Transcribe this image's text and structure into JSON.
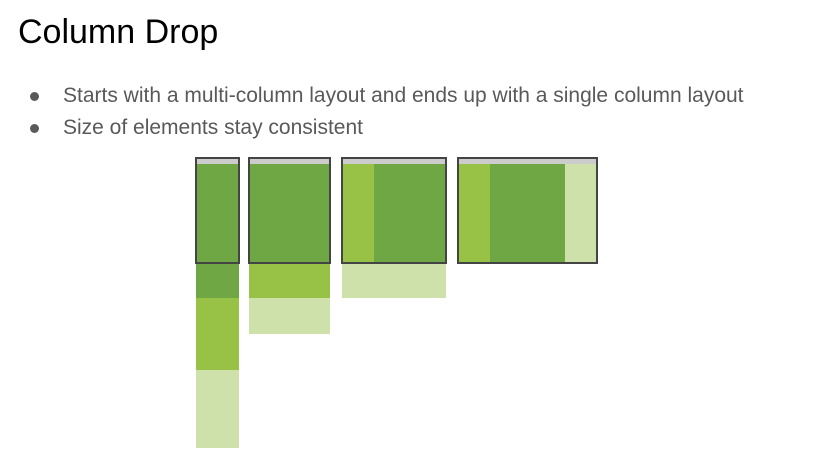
{
  "slide": {
    "title": "Column Drop",
    "bullets": [
      "Starts with a multi-column layout and ends up with a single column layout",
      "Size of elements stay consistent"
    ]
  },
  "diagram": {
    "colors": {
      "primary": "#6fa744",
      "secondary": "#98c245",
      "tertiary": "#cfe1ab",
      "frame": "#444444",
      "frame_top_bar": "#cccccc"
    }
  }
}
